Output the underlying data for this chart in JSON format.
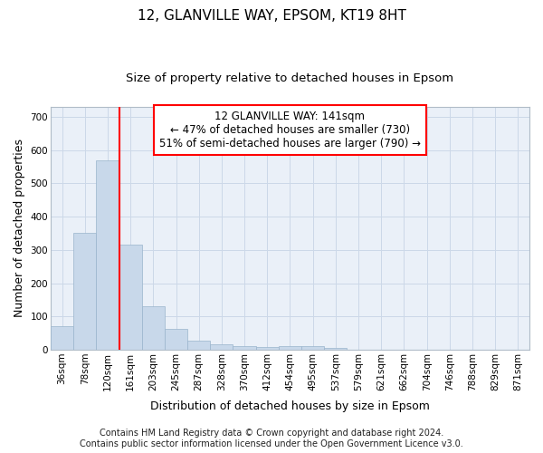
{
  "title": "12, GLANVILLE WAY, EPSOM, KT19 8HT",
  "subtitle": "Size of property relative to detached houses in Epsom",
  "xlabel": "Distribution of detached houses by size in Epsom",
  "ylabel": "Number of detached properties",
  "bar_color": "#c8d8ea",
  "bar_edge_color": "#9ab4cc",
  "background_color": "#eaf0f8",
  "grid_color": "#ccd8e8",
  "bin_labels": [
    "36sqm",
    "78sqm",
    "120sqm",
    "161sqm",
    "203sqm",
    "245sqm",
    "287sqm",
    "328sqm",
    "370sqm",
    "412sqm",
    "454sqm",
    "495sqm",
    "537sqm",
    "579sqm",
    "621sqm",
    "662sqm",
    "704sqm",
    "746sqm",
    "788sqm",
    "829sqm",
    "871sqm"
  ],
  "bar_values": [
    70,
    350,
    570,
    315,
    130,
    62,
    27,
    17,
    10,
    7,
    10,
    10,
    5,
    0,
    0,
    0,
    0,
    0,
    0,
    0,
    0
  ],
  "ylim": [
    0,
    730
  ],
  "yticks": [
    0,
    100,
    200,
    300,
    400,
    500,
    600,
    700
  ],
  "property_label": "12 GLANVILLE WAY: 141sqm",
  "arrow_left_text": "← 47% of detached houses are smaller (730)",
  "arrow_right_text": "51% of semi-detached houses are larger (790) →",
  "vline_x_idx": 2.5,
  "footer_line1": "Contains HM Land Registry data © Crown copyright and database right 2024.",
  "footer_line2": "Contains public sector information licensed under the Open Government Licence v3.0.",
  "title_fontsize": 11,
  "subtitle_fontsize": 9.5,
  "xlabel_fontsize": 9,
  "ylabel_fontsize": 9,
  "tick_fontsize": 7.5,
  "footer_fontsize": 7,
  "annotation_fontsize": 8.5
}
